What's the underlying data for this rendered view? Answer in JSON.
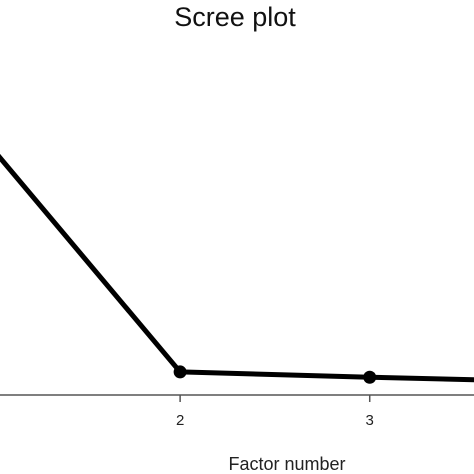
{
  "chart_data": {
    "type": "line",
    "title": "Scree plot",
    "xlabel": "Factor number",
    "ylabel": "",
    "x": [
      1,
      2,
      3,
      4
    ],
    "series": [
      {
        "values": [
          2.8,
          0.26,
          0.2,
          0.15
        ]
      }
    ],
    "xticks": [
      "2",
      "3"
    ],
    "xlim": [
      1.05,
      3.55
    ],
    "ylim": [
      0,
      4
    ],
    "grid": false,
    "line_color": "#000000",
    "axis_color": "#555555"
  }
}
